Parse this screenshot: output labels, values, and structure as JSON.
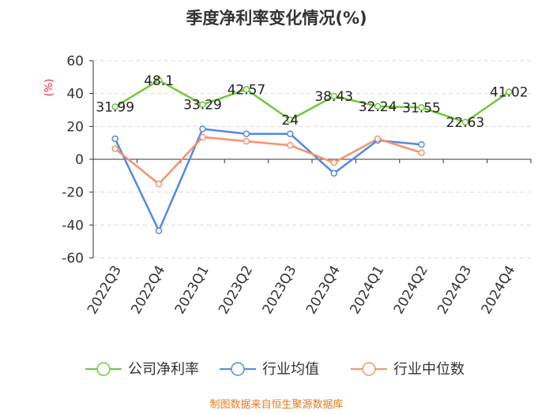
{
  "chart_data": {
    "type": "line",
    "title": "季度净利率变化情况(%)",
    "ylabel": "(%)",
    "xlabel": "",
    "ylim": [
      -60,
      60
    ],
    "yticks": [
      60,
      40,
      20,
      0,
      -20,
      -40,
      -60
    ],
    "grid": true,
    "legend_position": "bottom",
    "categories": [
      "2022Q3",
      "2022Q4",
      "2023Q1",
      "2023Q2",
      "2023Q3",
      "2023Q4",
      "2024Q1",
      "2024Q2",
      "2024Q3",
      "2024Q4"
    ],
    "series": [
      {
        "name": "公司净利率",
        "color": "#6dc93a",
        "values": [
          31.99,
          48.1,
          33.29,
          42.57,
          24,
          38.43,
          32.24,
          31.55,
          22.63,
          41.02
        ],
        "labels": [
          "31.99",
          "48.1",
          "33.29",
          "42.57",
          "24",
          "38.43",
          "32.24",
          "31.55",
          "22.63",
          "41.02"
        ]
      },
      {
        "name": "行业均值",
        "color": "#5189e3",
        "values": [
          12.5,
          -43.5,
          18.5,
          15.5,
          15.5,
          -8.5,
          11.5,
          9.0,
          null,
          null
        ]
      },
      {
        "name": "行业中位数",
        "color": "#f5926a",
        "values": [
          6.5,
          -15,
          13.5,
          11,
          8.5,
          -2,
          12.5,
          4,
          null,
          null
        ]
      }
    ]
  },
  "source": "制图数据来自恒生聚源数据库"
}
